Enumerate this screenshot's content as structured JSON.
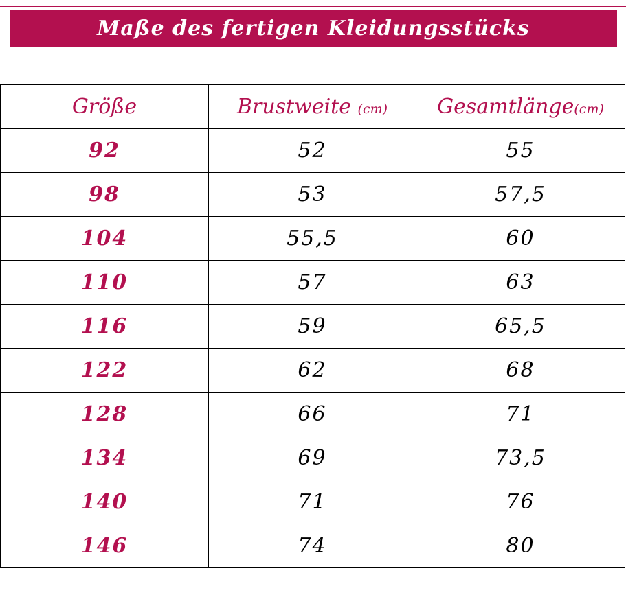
{
  "title": "Maße des fertigen Kleidungsstücks",
  "colors": {
    "accent": "#b3104f",
    "text": "#000000",
    "banner_text": "#ffffff"
  },
  "table": {
    "headers": {
      "size": "Größe",
      "chest": "Brustweite",
      "chest_unit": "(cm)",
      "length": "Gesamtlänge",
      "length_unit": "(cm)"
    },
    "rows": [
      {
        "size": "92",
        "chest": "52",
        "length": "55"
      },
      {
        "size": "98",
        "chest": "53",
        "length": "57,5"
      },
      {
        "size": "104",
        "chest": "55,5",
        "length": "60"
      },
      {
        "size": "110",
        "chest": "57",
        "length": "63"
      },
      {
        "size": "116",
        "chest": "59",
        "length": "65,5"
      },
      {
        "size": "122",
        "chest": "62",
        "length": "68"
      },
      {
        "size": "128",
        "chest": "66",
        "length": "71"
      },
      {
        "size": "134",
        "chest": "69",
        "length": "73,5"
      },
      {
        "size": "140",
        "chest": "71",
        "length": "76"
      },
      {
        "size": "146",
        "chest": "74",
        "length": "80"
      }
    ]
  }
}
